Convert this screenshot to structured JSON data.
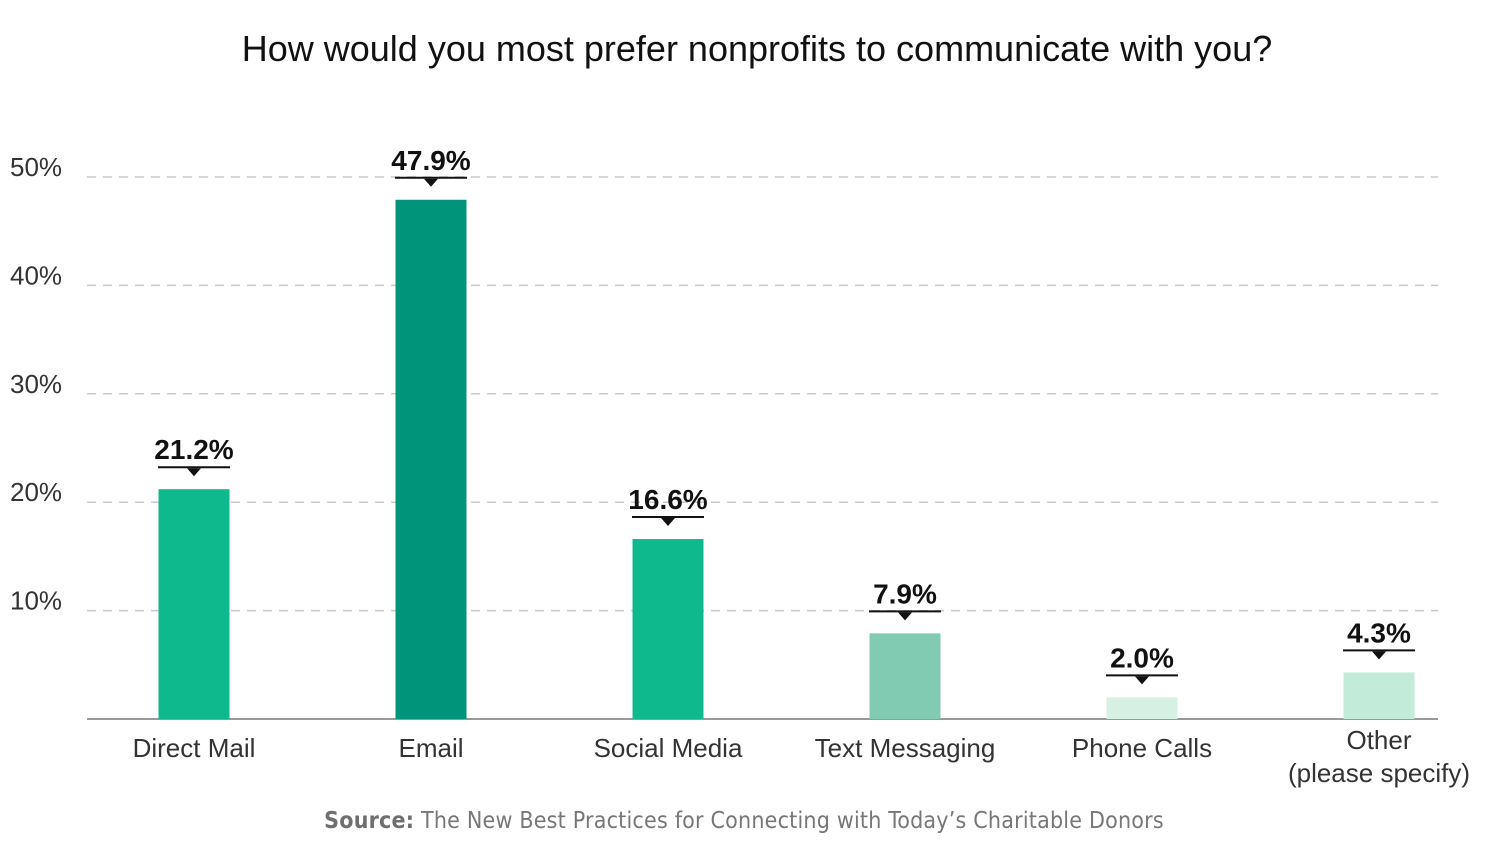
{
  "chart_data": {
    "type": "bar",
    "title": "How would you most prefer nonprofits to communicate with you?",
    "categories": [
      "Direct Mail",
      "Email",
      "Social Media",
      "Text Messaging",
      "Phone Calls",
      "Other (please specify)"
    ],
    "category_lines": [
      [
        "Direct Mail"
      ],
      [
        "Email"
      ],
      [
        "Social Media"
      ],
      [
        "Text Messaging"
      ],
      [
        "Phone Calls"
      ],
      [
        "Other",
        "(please specify)"
      ]
    ],
    "values": [
      21.2,
      47.9,
      16.6,
      7.9,
      2.0,
      4.3
    ],
    "value_labels": [
      "21.2%",
      "47.9%",
      "16.6%",
      "7.9%",
      "2.0%",
      "4.3%"
    ],
    "bar_colors": [
      "#0db98d",
      "#00957a",
      "#0db98d",
      "#80cbb2",
      "#d6f1e4",
      "#c2ecd9"
    ],
    "ylim": [
      0,
      50
    ],
    "yticks": [
      10,
      20,
      30,
      40,
      50
    ],
    "ytick_labels": [
      "10%",
      "20%",
      "30%",
      "40%",
      "50%"
    ],
    "xlabel": "",
    "ylabel": "",
    "grid": true,
    "legend": "none"
  },
  "source": {
    "label": "Source:",
    "text": " The New Best Practices for Connecting with Today’s Charitable Donors"
  },
  "colors": {
    "grid": "#c8c8c8",
    "axis": "#999999",
    "label_marker": "#111111"
  }
}
